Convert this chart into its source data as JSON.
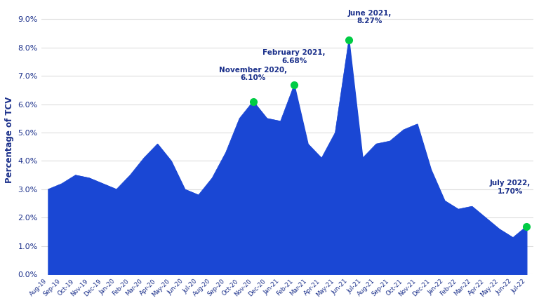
{
  "ylabel": "Percentage of TCV",
  "background_color": "#ffffff",
  "fill_color": "#1a47d4",
  "line_color": "#1a47d4",
  "annotation_color": "#1a2f8a",
  "marker_color": "#00cc44",
  "ylim": [
    0.0,
    0.095
  ],
  "yticks": [
    0.0,
    0.01,
    0.02,
    0.03,
    0.04,
    0.05,
    0.06,
    0.07,
    0.08,
    0.09
  ],
  "ytick_labels": [
    "0.0%",
    "1.0%",
    "2.0%",
    "3.0%",
    "4.0%",
    "5.0%",
    "6.0%",
    "7.0%",
    "8.0%",
    "9.0%"
  ],
  "labels": [
    "Aug-19",
    "Sep-19",
    "Oct-19",
    "Nov-19",
    "Dec-19",
    "Jan-20",
    "Feb-20",
    "Mar-20",
    "Apr-20",
    "May-20",
    "Jun-20",
    "Jul-20",
    "Aug-20",
    "Sep-20",
    "Oct-20",
    "Nov-20",
    "Dec-20",
    "Jan-21",
    "Feb-21",
    "Mar-21",
    "Apr-21",
    "May-21",
    "Jun-21",
    "Jul-21",
    "Aug-21",
    "Sep-21",
    "Oct-21",
    "Nov-21",
    "Dec-21",
    "Jan-22",
    "Feb-22",
    "Mar-22",
    "Apr-22",
    "May-22",
    "Jun-22",
    "Jul-22"
  ],
  "values": [
    0.03,
    0.032,
    0.035,
    0.034,
    0.032,
    0.03,
    0.035,
    0.041,
    0.046,
    0.04,
    0.03,
    0.028,
    0.034,
    0.043,
    0.055,
    0.061,
    0.055,
    0.054,
    0.0668,
    0.046,
    0.041,
    0.05,
    0.0827,
    0.041,
    0.046,
    0.047,
    0.051,
    0.053,
    0.037,
    0.026,
    0.023,
    0.024,
    0.02,
    0.016,
    0.013,
    0.017
  ],
  "annotations": [
    {
      "label": "November 2020,\n6.10%",
      "index": 15,
      "value": 0.061,
      "xtext": 15,
      "ytext": 0.068
    },
    {
      "label": "February 2021,\n6.68%",
      "index": 18,
      "value": 0.0668,
      "xtext": 18,
      "ytext": 0.074
    },
    {
      "label": "June 2021,\n8.27%",
      "index": 22,
      "value": 0.0827,
      "xtext": 23.5,
      "ytext": 0.088
    },
    {
      "label": "July 2022,\n1.70%",
      "index": 35,
      "value": 0.017,
      "xtext": 33.8,
      "ytext": 0.028
    }
  ]
}
